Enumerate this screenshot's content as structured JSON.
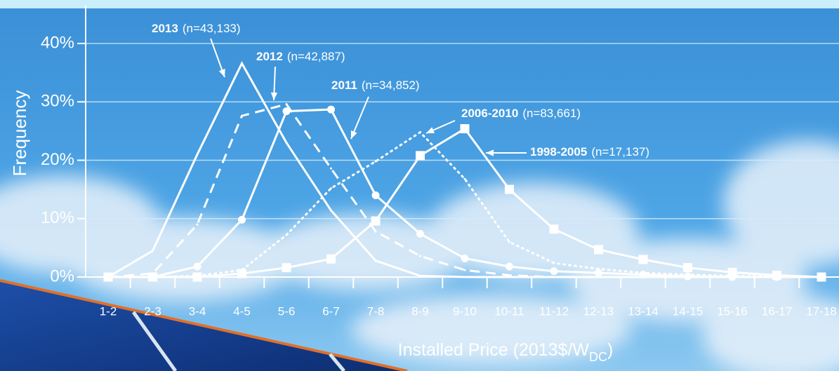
{
  "chart_data": {
    "type": "line",
    "y_label": "Frequency",
    "x_label": {
      "text": "Installed Price (2013$/W",
      "sub": "DC",
      "end": ")"
    },
    "categories": [
      "1-2",
      "2-3",
      "3-4",
      "4-5",
      "5-6",
      "6-7",
      "7-8",
      "8-9",
      "9-10",
      "10-11",
      "11-12",
      "12-13",
      "13-14",
      "14-15",
      "15-16",
      "16-17",
      "17-18"
    ],
    "ylim": [
      0,
      40
    ],
    "yticks": [
      {
        "value": 0,
        "label": "0%"
      },
      {
        "value": 10,
        "label": "10%"
      },
      {
        "value": 20,
        "label": "20%"
      },
      {
        "value": 30,
        "label": "30%"
      },
      {
        "value": 40,
        "label": "40%"
      }
    ],
    "grid": true,
    "series": [
      {
        "name": "2013",
        "sample": "(n=43,133)",
        "color": "#ffffff",
        "style": "solid",
        "marker": "none",
        "values": [
          0,
          4.5,
          21,
          36.6,
          23,
          11.4,
          2.8,
          0.2,
          0,
          0,
          0,
          0,
          0,
          0,
          0,
          0,
          0
        ]
      },
      {
        "name": "2012",
        "sample": "(n=42,887)",
        "color": "#ffffff",
        "style": "dashed",
        "marker": "none",
        "values": [
          0,
          0.6,
          9,
          27.6,
          29.6,
          18.6,
          7.8,
          3.6,
          1.2,
          0.3,
          0,
          0,
          0,
          0,
          0,
          0,
          0
        ]
      },
      {
        "name": "2011",
        "sample": "(n=34,852)",
        "color": "#ffffff",
        "style": "solid",
        "marker": "circle",
        "values": [
          0,
          0,
          1.8,
          9.8,
          28.4,
          28.7,
          14,
          7.4,
          3.2,
          1.8,
          1,
          0.7,
          0.4,
          0.1,
          0,
          0,
          0
        ]
      },
      {
        "name": "2006-2010",
        "sample": "(n=83,661)",
        "color": "#ffffff",
        "style": "dotted",
        "marker": "none",
        "values": [
          0,
          0,
          0.2,
          1.2,
          7.2,
          15.2,
          19.8,
          24.8,
          16.8,
          6,
          2.4,
          1.4,
          0.7,
          0.4,
          0.2,
          0.1,
          0
        ]
      },
      {
        "name": "1998-2005",
        "sample": "(n=17,137)",
        "color": "#ffffff",
        "style": "solid",
        "marker": "square",
        "values": [
          0,
          0,
          0,
          0.6,
          1.6,
          3.1,
          9.6,
          20.8,
          25.4,
          15,
          8.2,
          4.7,
          3,
          1.6,
          0.8,
          0.3,
          0
        ]
      }
    ]
  }
}
